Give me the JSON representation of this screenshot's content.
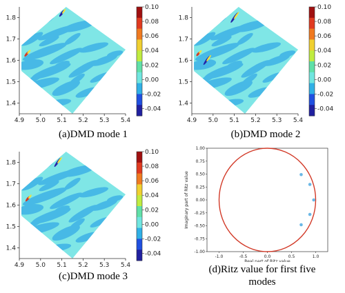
{
  "colors": {
    "background": "#7fe6e6",
    "lowPatch": "#47b9e6",
    "dark": "#2424a8",
    "red": "#d23a28",
    "ritzPoint": "#6bb8e6",
    "unitCircle": "#d23a28"
  },
  "chart_data": [
    {
      "type": "heatmap",
      "caption": "(a)DMD mode 1",
      "xticks": [
        "4.9",
        "5.0",
        "5.1",
        "5.2",
        "5.3",
        "5.4"
      ],
      "yticks": [
        "1.8",
        "1.7",
        "1.6",
        "1.5",
        "1.4"
      ],
      "xlim": [
        4.9,
        5.4
      ],
      "ylim": [
        1.35,
        1.85
      ],
      "colorbar": {
        "ticks": [
          "0.10",
          "0.08",
          "0.06",
          "0.04",
          "0.02",
          "0.00",
          "-0.02",
          "-0.04"
        ],
        "range": [
          -0.05,
          0.1
        ]
      }
    },
    {
      "type": "heatmap",
      "caption": "(b)DMD mode 2",
      "xticks": [
        "4.9",
        "5.0",
        "5.1",
        "5.2",
        "5.3",
        "5.4"
      ],
      "yticks": [
        "1.8",
        "1.7",
        "1.6",
        "1.5",
        "1.4"
      ],
      "xlim": [
        4.9,
        5.4
      ],
      "ylim": [
        1.35,
        1.85
      ],
      "colorbar": {
        "ticks": [
          "0.10",
          "0.08",
          "0.06",
          "0.04",
          "0.02",
          "0.00",
          "-0.02",
          "-0.04"
        ],
        "range": [
          -0.05,
          0.1
        ]
      }
    },
    {
      "type": "heatmap",
      "caption": "(c)DMD mode 3",
      "xticks": [
        "4.9",
        "5.0",
        "5.1",
        "5.2",
        "5.3",
        "5.4"
      ],
      "yticks": [
        "1.8",
        "1.7",
        "1.6",
        "1.5",
        "1.4"
      ],
      "xlim": [
        4.9,
        5.4
      ],
      "ylim": [
        1.35,
        1.85
      ],
      "colorbar": {
        "ticks": [
          "0.10",
          "0.08",
          "0.06",
          "0.04",
          "0.02",
          "0.00",
          "-0.02",
          "-0.04"
        ],
        "range": [
          -0.05,
          0.1
        ]
      }
    },
    {
      "type": "scatter",
      "caption_line1": "(d)Ritz value for first five",
      "caption_line2": "modes",
      "xlabel": "Real part of Ritz value",
      "ylabel": "Imaginary part of Ritz value",
      "xlim": [
        -1.25,
        1.25
      ],
      "ylim": [
        -1.0,
        1.0
      ],
      "xticks": [
        "-1.0",
        "-0.5",
        "0.0",
        "0.5",
        "1.0"
      ],
      "yticks": [
        "1.00",
        "0.75",
        "0.50",
        "0.25",
        "0.00",
        "-0.25",
        "-0.50",
        "-0.75",
        "-1.00"
      ],
      "points": [
        {
          "x": 0.7,
          "y": 0.49
        },
        {
          "x": 0.88,
          "y": 0.3
        },
        {
          "x": 0.96,
          "y": 0.0
        },
        {
          "x": 0.88,
          "y": -0.28
        },
        {
          "x": 0.7,
          "y": -0.48
        }
      ],
      "unit_circle_radius": 1.0
    }
  ]
}
